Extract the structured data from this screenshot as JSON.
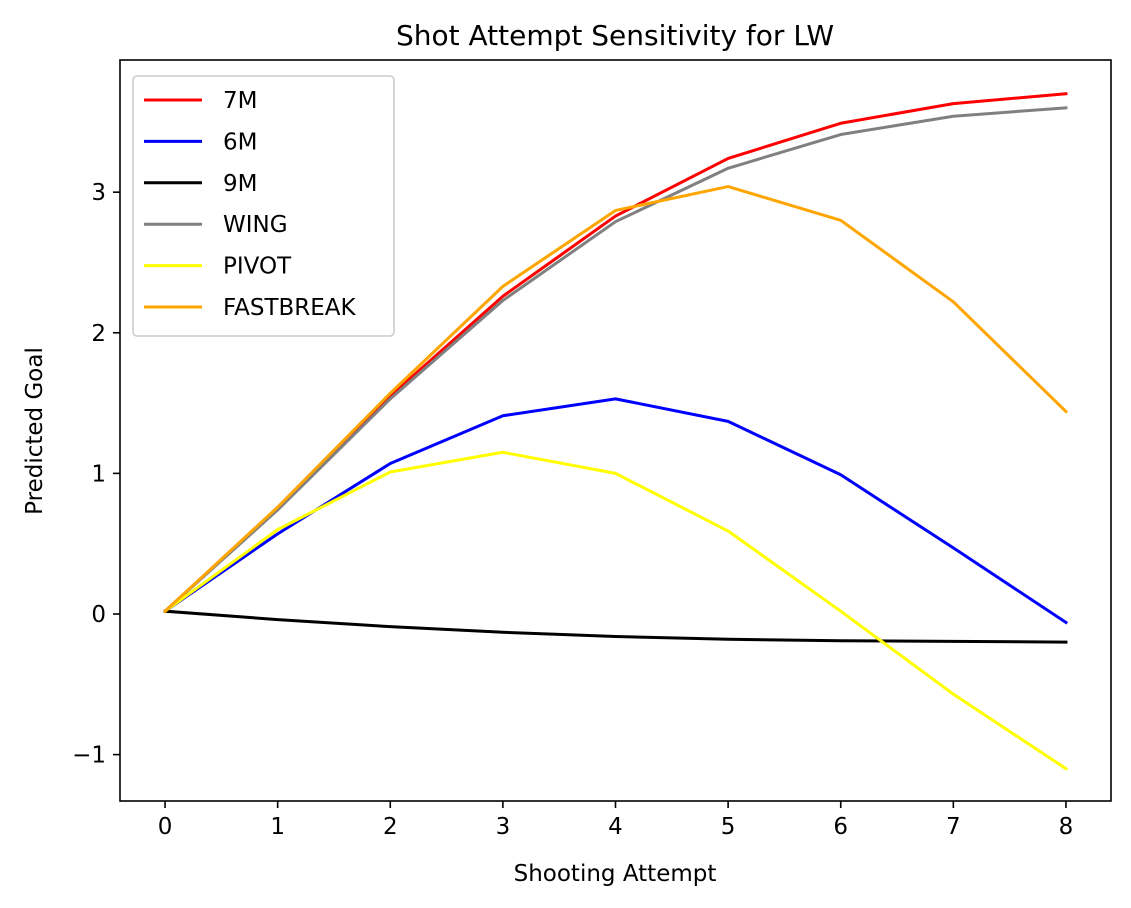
{
  "chart_data": {
    "type": "line",
    "title": "Shot Attempt Sensitivity for LW",
    "xlabel": "Shooting Attempt",
    "ylabel": "Predicted Goal",
    "x": [
      0,
      1,
      2,
      3,
      4,
      5,
      6,
      7,
      8
    ],
    "xlim": [
      -0.4,
      8.4
    ],
    "ylim": [
      -1.33,
      3.94
    ],
    "xticks": [
      0,
      1,
      2,
      3,
      4,
      5,
      6,
      7,
      8
    ],
    "xtick_labels": [
      "0",
      "1",
      "2",
      "3",
      "4",
      "5",
      "6",
      "7",
      "8"
    ],
    "yticks": [
      -1,
      0,
      1,
      2,
      3
    ],
    "ytick_labels": [
      "−1",
      "0",
      "1",
      "2",
      "3"
    ],
    "grid": false,
    "legend_position": "top-left",
    "series": [
      {
        "name": "7M",
        "color": "#ff0000",
        "values": [
          0.02,
          0.75,
          1.55,
          2.26,
          2.83,
          3.24,
          3.49,
          3.63,
          3.7
        ]
      },
      {
        "name": "6M",
        "color": "#0000ff",
        "values": [
          0.02,
          0.57,
          1.07,
          1.41,
          1.53,
          1.37,
          0.99,
          0.47,
          -0.06
        ]
      },
      {
        "name": "9M",
        "color": "#000000",
        "values": [
          0.02,
          -0.04,
          -0.09,
          -0.13,
          -0.16,
          -0.18,
          -0.19,
          -0.195,
          -0.2
        ]
      },
      {
        "name": "WING",
        "color": "#808080",
        "values": [
          0.02,
          0.74,
          1.53,
          2.23,
          2.79,
          3.17,
          3.41,
          3.54,
          3.6
        ]
      },
      {
        "name": "PIVOT",
        "color": "#ffff00",
        "values": [
          0.02,
          0.6,
          1.01,
          1.15,
          1.0,
          0.59,
          0.02,
          -0.57,
          -1.1
        ]
      },
      {
        "name": "FASTBREAK",
        "color": "#ffa500",
        "values": [
          0.02,
          0.76,
          1.57,
          2.33,
          2.87,
          3.04,
          2.8,
          2.22,
          1.44
        ]
      }
    ]
  }
}
